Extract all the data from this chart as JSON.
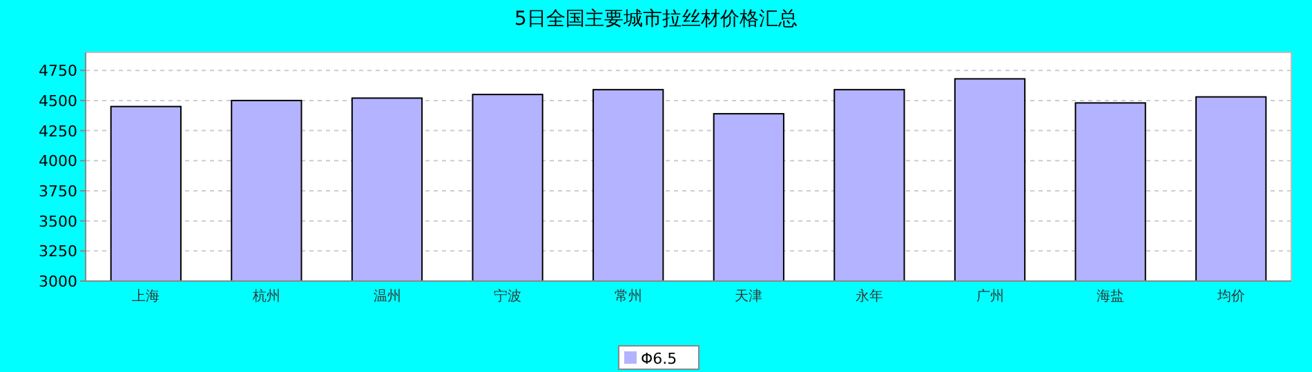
{
  "chart_data": {
    "type": "bar",
    "title": "5日全国主要城市拉丝材价格汇总",
    "categories": [
      "上海",
      "杭州",
      "温州",
      "宁波",
      "常州",
      "天津",
      "永年",
      "广州",
      "海盐",
      "均价"
    ],
    "series": [
      {
        "name": "Φ6.5",
        "color": "#b3b3ff",
        "values": [
          4450,
          4500,
          4520,
          4550,
          4590,
          4390,
          4590,
          4680,
          4480,
          4530
        ]
      }
    ],
    "ylim": [
      3000,
      4900
    ],
    "yticks": [
      3000,
      3250,
      3500,
      3750,
      4000,
      4250,
      4500,
      4750
    ],
    "grid": "y",
    "legend": "bottom"
  }
}
